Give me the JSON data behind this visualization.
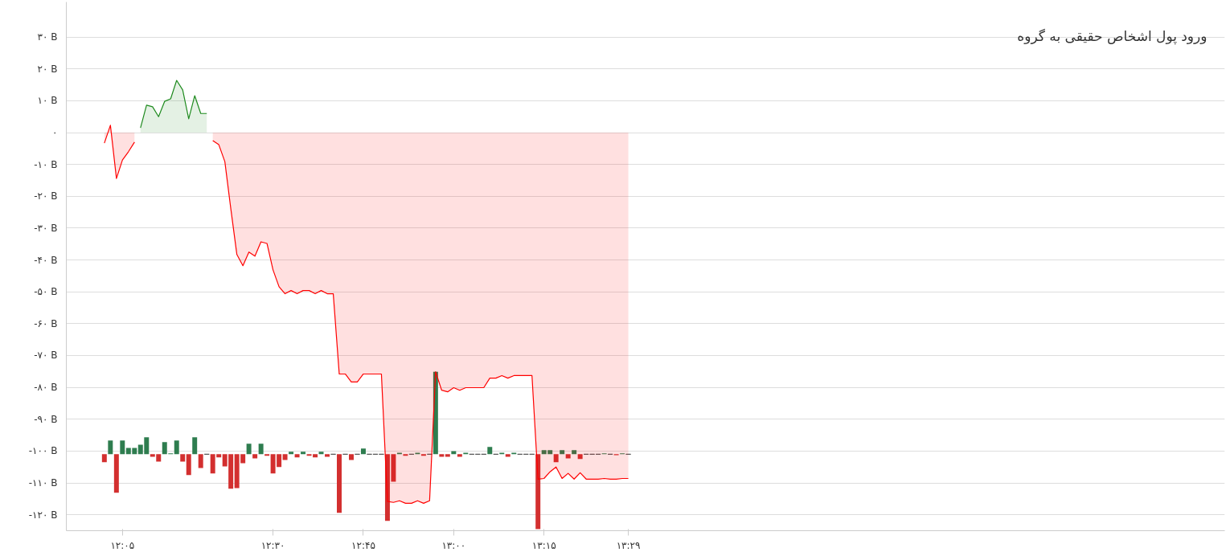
{
  "chart_data": {
    "type": "area",
    "title": "ورود پول اشخاص حقیقی به گروه",
    "xlim": [
      11.928,
      15.134
    ],
    "ylim": [
      -125,
      41
    ],
    "xticks": [
      {
        "value": 12.0833,
        "label": "۱۲:۰۵"
      },
      {
        "value": 12.5,
        "label": "۱۲:۳۰"
      },
      {
        "value": 12.75,
        "label": "۱۲:۴۵"
      },
      {
        "value": 13,
        "label": "۱۳:۰۰"
      },
      {
        "value": 13.25,
        "label": "۱۳:۱۵"
      },
      {
        "value": 13.4833,
        "label": "۱۳:۲۹"
      }
    ],
    "yticks": [
      {
        "value": 30,
        "label": "۳۰ B"
      },
      {
        "value": 20,
        "label": "۲۰ B"
      },
      {
        "value": 10,
        "label": "۱۰ B"
      },
      {
        "value": 0,
        "label": "۰"
      },
      {
        "value": -10,
        "label": "-۱۰ B"
      },
      {
        "value": -20,
        "label": "-۲۰ B"
      },
      {
        "value": -30,
        "label": "-۳۰ B"
      },
      {
        "value": -40,
        "label": "-۴۰ B"
      },
      {
        "value": -50,
        "label": "-۵۰ B"
      },
      {
        "value": -60,
        "label": "-۶۰ B"
      },
      {
        "value": -70,
        "label": "-۷۰ B"
      },
      {
        "value": -80,
        "label": "-۸۰ B"
      },
      {
        "value": -90,
        "label": "-۹۰ B"
      },
      {
        "value": -100,
        "label": "-۱۰۰ B"
      },
      {
        "value": -110,
        "label": "-۱۱۰ B"
      },
      {
        "value": -120,
        "label": "-۱۲۰ B"
      }
    ],
    "grid": "y",
    "x": [
      12.0333,
      12.05,
      12.0667,
      12.0833,
      12.1,
      12.1167,
      12.1333,
      12.15,
      12.1667,
      12.1833,
      12.2,
      12.2167,
      12.2333,
      12.25,
      12.2667,
      12.2833,
      12.3,
      12.3167,
      12.3333,
      12.35,
      12.3667,
      12.3833,
      12.4,
      12.4167,
      12.4333,
      12.45,
      12.4667,
      12.4833,
      12.5,
      12.5167,
      12.5333,
      12.55,
      12.5667,
      12.5833,
      12.6,
      12.6167,
      12.6333,
      12.65,
      12.6667,
      12.6833,
      12.7,
      12.7167,
      12.7333,
      12.75,
      12.7667,
      12.7833,
      12.8,
      12.8167,
      12.8333,
      12.85,
      12.8667,
      12.8833,
      12.9,
      12.9167,
      12.9333,
      12.95,
      12.9667,
      12.9833,
      13,
      13.0167,
      13.0333,
      13.05,
      13.0667,
      13.0833,
      13.1,
      13.1167,
      13.1333,
      13.15,
      13.1667,
      13.1833,
      13.2,
      13.2167,
      13.2333,
      13.25,
      13.2667,
      13.2833,
      13.3,
      13.3167,
      13.3333,
      13.35,
      13.3667,
      13.3833,
      13.4,
      13.4167,
      13.4333,
      13.45,
      13.4667,
      13.4833
    ],
    "series": [
      {
        "type": "bar",
        "base": [
          -101,
          -101,
          -101,
          -101,
          -101,
          -101,
          -101,
          -101,
          -101,
          -101,
          -101,
          -101,
          -101,
          -101,
          -101,
          -101,
          -101,
          -101,
          -101,
          -101,
          -101,
          -101,
          -101,
          -101,
          -101,
          -101,
          -101,
          -101,
          -101,
          -101,
          -101,
          -101,
          -101,
          -101,
          -101,
          -101,
          -101,
          -101,
          -101,
          -101,
          -101,
          -101,
          -101,
          -101,
          -101,
          -101,
          -101,
          -101,
          -101,
          -101,
          -101,
          -101,
          -101,
          -101,
          -101,
          -101,
          -101,
          -101,
          -101,
          -101,
          -101,
          -101,
          -101,
          -101,
          -101,
          -101,
          -101,
          -101,
          -101,
          -101,
          -101,
          -101,
          -101,
          -101,
          -101,
          -101,
          -101,
          -101,
          -101,
          -101,
          -101,
          -101,
          -101,
          -101,
          -101,
          -101,
          -101,
          -101
        ],
        "values": [
          -2.5,
          4.3,
          -12.1,
          4.3,
          2,
          2,
          3,
          5.3,
          -0.8,
          -2.3,
          3.8,
          0.3,
          4.3,
          -2.3,
          -6.5,
          5.3,
          -4.3,
          0,
          -6,
          -1,
          -3.8,
          -10.8,
          -10.6,
          -2.8,
          3.3,
          -1.3,
          3.3,
          -0.5,
          -6,
          -4,
          -1.8,
          0.8,
          -1,
          0.8,
          -0.5,
          -1,
          0.8,
          -0.8,
          0,
          -18.4,
          0,
          -1.8,
          0,
          1.8,
          0,
          0,
          0,
          -20.9,
          -8.6,
          0.5,
          -0.5,
          0,
          0.5,
          -0.5,
          0,
          25.9,
          -0.8,
          -0.8,
          1,
          -0.8,
          0.5,
          0,
          0,
          0,
          2.3,
          0,
          0.5,
          -0.8,
          0.5,
          0,
          0,
          0,
          -23.5,
          1.3,
          1.3,
          -2.5,
          1.3,
          -1.3,
          1.3,
          -1.5,
          0,
          0,
          0,
          0.3,
          0,
          -0.3,
          0.3,
          0
        ],
        "colors": [
          "#d32f2f",
          "#2e7d4f",
          "#d32f2f",
          "#2e7d4f",
          "#2e7d4f",
          "#2e7d4f",
          "#2e7d4f",
          "#2e7d4f",
          "#d32f2f",
          "#d32f2f",
          "#2e7d4f",
          "#2e7d4f",
          "#2e7d4f",
          "#d32f2f",
          "#d32f2f",
          "#2e7d4f",
          "#d32f2f",
          "#555555",
          "#d32f2f",
          "#d32f2f",
          "#d32f2f",
          "#d32f2f",
          "#d32f2f",
          "#d32f2f",
          "#2e7d4f",
          "#d32f2f",
          "#2e7d4f",
          "#d32f2f",
          "#d32f2f",
          "#d32f2f",
          "#d32f2f",
          "#2e7d4f",
          "#d32f2f",
          "#2e7d4f",
          "#d32f2f",
          "#d32f2f",
          "#2e7d4f",
          "#d32f2f",
          "#555555",
          "#d32f2f",
          "#555555",
          "#d32f2f",
          "#555555",
          "#2e7d4f",
          "#555555",
          "#555555",
          "#555555",
          "#d32f2f",
          "#d32f2f",
          "#2e7d4f",
          "#d32f2f",
          "#555555",
          "#2e7d4f",
          "#d32f2f",
          "#555555",
          "#2e7d4f",
          "#d32f2f",
          "#d32f2f",
          "#2e7d4f",
          "#d32f2f",
          "#2e7d4f",
          "#555555",
          "#555555",
          "#555555",
          "#2e7d4f",
          "#555555",
          "#2e7d4f",
          "#d32f2f",
          "#2e7d4f",
          "#555555",
          "#555555",
          "#555555",
          "#d32f2f",
          "#2e7d4f",
          "#2e7d4f",
          "#d32f2f",
          "#2e7d4f",
          "#d32f2f",
          "#2e7d4f",
          "#d32f2f",
          "#555555",
          "#555555",
          "#555555",
          "#2e7d4f",
          "#555555",
          "#d32f2f",
          "#2e7d4f",
          "#555555"
        ]
      },
      {
        "color": "#1e8a1e",
        "x": [
          12.1333,
          12.15,
          12.1667,
          12.1833,
          12.2,
          12.2167,
          12.2333,
          12.25,
          12.2667,
          12.2833,
          12.3,
          12.3167
        ],
        "values": [
          1.5,
          8.6,
          8.1,
          5,
          9.8,
          10.6,
          16.4,
          13.4,
          4.3,
          11.6,
          6,
          6
        ]
      },
      {
        "color": "#ff0000",
        "values": [
          -3.3,
          2.3,
          -14.4,
          -8.6,
          -6,
          -3,
          null,
          null,
          null,
          null,
          null,
          null,
          null,
          null,
          null,
          null,
          null,
          null,
          -2.5,
          -3.8,
          -9.1,
          -24,
          -38.3,
          -41.8,
          -37.5,
          -38.8,
          -34.3,
          -34.8,
          -43.1,
          -48.4,
          -50.6,
          -49.6,
          -50.6,
          -49.6,
          -49.6,
          -50.6,
          -49.6,
          -50.6,
          -50.6,
          -75.8,
          -75.8,
          -78.3,
          -78.3,
          -75.8,
          -75.8,
          -75.8,
          -75.8,
          -115.8,
          -116.1,
          -115.6,
          -116.4,
          -116.4,
          -115.6,
          -116.4,
          -115.6,
          -75.1,
          -80.9,
          -81.4,
          -80.1,
          -80.9,
          -80.1,
          -80.1,
          -80.1,
          -80.1,
          -77.1,
          -77.1,
          -76.3,
          -77.1,
          -76.3,
          -76.3,
          -76.3,
          -76.3,
          -108.8,
          -108.6,
          -106.5,
          -105,
          -108.6,
          -107,
          -108.8,
          -106.8,
          -108.8,
          -108.8,
          -108.8,
          -108.6,
          -108.8,
          -108.8,
          -108.6,
          -108.6
        ]
      }
    ]
  }
}
